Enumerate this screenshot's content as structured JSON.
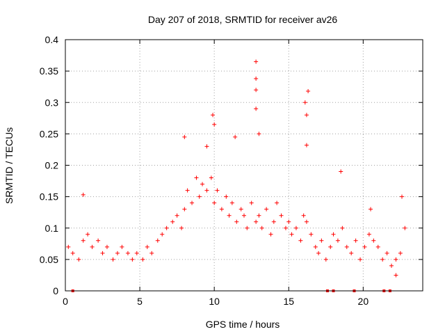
{
  "chart_data": {
    "type": "scatter",
    "title": "Day 207 of 2018, SRMTID for receiver av26",
    "xlabel": "GPS time / hours",
    "ylabel": "SRMTID / TECUs",
    "xlim": [
      0,
      24
    ],
    "ylim": [
      0,
      0.4
    ],
    "xticks": [
      0,
      5,
      10,
      15,
      20
    ],
    "xtick_labels": [
      "0",
      "5",
      "10",
      "15",
      "20"
    ],
    "yticks": [
      0,
      0.05,
      0.1,
      0.15,
      0.2,
      0.25,
      0.3,
      0.35,
      0.4
    ],
    "ytick_labels": [
      "0",
      "0.05",
      "0.1",
      "0.15",
      "0.2",
      "0.25",
      "0.3",
      "0.35",
      "0.4"
    ],
    "grid": true,
    "marker": "+",
    "series": [
      {
        "name": "SRMTID",
        "color": "#ff0000",
        "x": [
          0.2,
          0.5,
          0.9,
          1.2,
          1.5,
          1.8,
          2.2,
          2.5,
          2.8,
          3.2,
          3.5,
          3.8,
          4.2,
          4.5,
          4.8,
          5.2,
          5.5,
          5.8,
          6.2,
          6.5,
          6.8,
          7.2,
          7.5,
          7.8,
          8.0,
          8.2,
          8.5,
          8.8,
          9.0,
          9.2,
          9.5,
          9.8,
          10.0,
          10.2,
          10.5,
          10.8,
          11.0,
          11.2,
          11.5,
          11.8,
          12.0,
          12.2,
          12.5,
          12.8,
          13.0,
          13.2,
          13.5,
          13.8,
          14.0,
          14.2,
          14.5,
          14.8,
          15.0,
          15.2,
          15.5,
          15.8,
          16.0,
          16.2,
          16.5,
          16.8,
          17.0,
          17.2,
          17.5,
          17.8,
          18.0,
          18.3,
          18.6,
          18.9,
          19.2,
          19.5,
          19.8,
          20.1,
          20.4,
          20.7,
          21.0,
          21.3,
          21.6,
          21.9,
          22.2,
          22.5,
          22.8,
          1.2,
          8.0,
          9.5,
          9.9,
          10.0,
          11.4,
          12.8,
          12.8,
          12.8,
          12.8,
          13.0,
          16.1,
          16.2,
          16.2,
          16.3,
          18.5,
          20.5,
          22.6,
          22.2
        ],
        "y": [
          0.07,
          0.06,
          0.05,
          0.08,
          0.09,
          0.07,
          0.08,
          0.06,
          0.07,
          0.05,
          0.06,
          0.07,
          0.06,
          0.05,
          0.06,
          0.05,
          0.07,
          0.06,
          0.08,
          0.09,
          0.1,
          0.11,
          0.12,
          0.1,
          0.13,
          0.16,
          0.14,
          0.18,
          0.15,
          0.17,
          0.16,
          0.18,
          0.14,
          0.16,
          0.13,
          0.15,
          0.12,
          0.14,
          0.11,
          0.13,
          0.12,
          0.1,
          0.14,
          0.11,
          0.12,
          0.1,
          0.13,
          0.09,
          0.11,
          0.14,
          0.12,
          0.1,
          0.11,
          0.09,
          0.1,
          0.08,
          0.12,
          0.11,
          0.09,
          0.07,
          0.06,
          0.08,
          0.05,
          0.07,
          0.09,
          0.08,
          0.1,
          0.07,
          0.06,
          0.08,
          0.05,
          0.07,
          0.09,
          0.08,
          0.07,
          0.05,
          0.06,
          0.04,
          0.05,
          0.06,
          0.1,
          0.153,
          0.245,
          0.23,
          0.28,
          0.265,
          0.245,
          0.365,
          0.338,
          0.32,
          0.29,
          0.25,
          0.3,
          0.28,
          0.232,
          0.318,
          0.19,
          0.13,
          0.15,
          0.025
        ]
      }
    ],
    "zero_markers_x": [
      0.5,
      17.6,
      18.0,
      19.4,
      21.4,
      21.8
    ]
  }
}
